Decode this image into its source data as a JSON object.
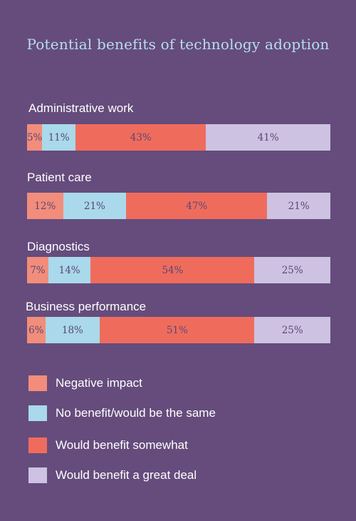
{
  "colors": {
    "background": "#654c7c",
    "title": "#b6def0",
    "negative": "#f28d7b",
    "no_benefit": "#a9d9ea",
    "somewhat": "#ef6c5d",
    "great_deal": "#cdc2e2"
  },
  "chart_data": {
    "type": "bar",
    "orientation": "horizontal",
    "stacked": true,
    "title": "Potential benefits of technology adoption",
    "categories": [
      "Administrative work",
      "Patient care",
      "Diagnostics",
      "Business performance"
    ],
    "series": [
      {
        "name": "Negative impact",
        "values": [
          5,
          12,
          7,
          6
        ],
        "labels": [
          "5%",
          "12%",
          "7%",
          "6%"
        ],
        "color": "#f28d7b"
      },
      {
        "name": "No benefit/would be the same",
        "values": [
          11,
          21,
          14,
          18
        ],
        "labels": [
          "11%",
          "21%",
          "14%",
          "18%"
        ],
        "color": "#a9d9ea"
      },
      {
        "name": "Would benefit somewhat",
        "values": [
          43,
          47,
          54,
          51
        ],
        "labels": [
          "43%",
          "47%",
          "54%",
          "51%"
        ],
        "color": "#ef6c5d"
      },
      {
        "name": "Would benefit a great deal",
        "values": [
          41,
          21,
          25,
          25
        ],
        "labels": [
          "41%",
          "21%",
          "25%",
          "25%"
        ],
        "color": "#cdc2e2"
      }
    ],
    "legend_position": "bottom"
  }
}
